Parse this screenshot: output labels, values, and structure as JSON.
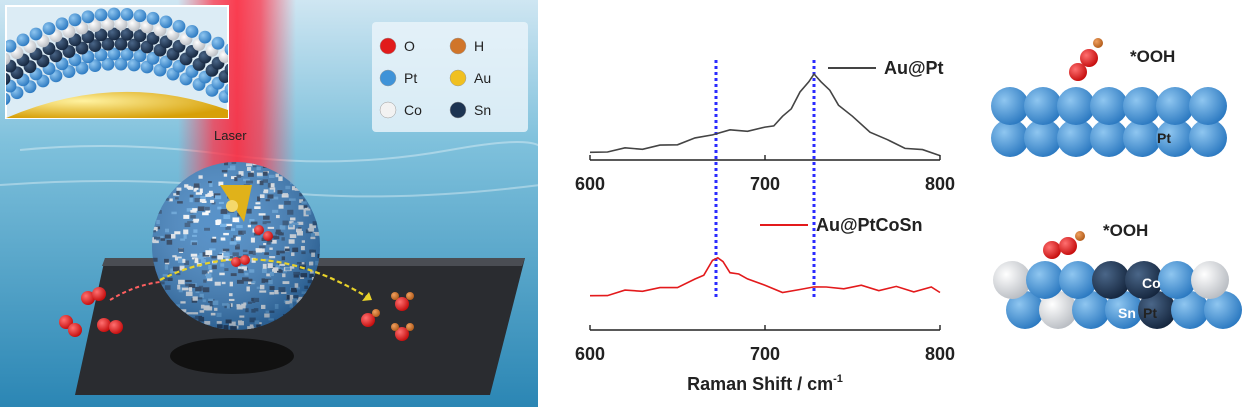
{
  "illustration": {
    "laser_label": "Laser",
    "legend": [
      {
        "symbol": "O",
        "color": "#e11b1b"
      },
      {
        "symbol": "H",
        "color": "#d0752a"
      },
      {
        "symbol": "Pt",
        "color": "#3f93d8"
      },
      {
        "symbol": "Au",
        "color": "#f0c020"
      },
      {
        "symbol": "Co",
        "color": "#f2f2f2"
      },
      {
        "symbol": "Sn",
        "color": "#1d3452"
      }
    ]
  },
  "chart_data": {
    "type": "line",
    "xlabel_main": "Raman Shift / cm",
    "xlabel_sup": "-1",
    "xlim": [
      600,
      800
    ],
    "tick_labels": [
      "600",
      "700",
      "800"
    ],
    "reference_lines": [
      672,
      728
    ],
    "series": [
      {
        "name": "Au@Pt",
        "color": "#444444",
        "x": [
          600,
          610,
          620,
          630,
          640,
          650,
          660,
          670,
          680,
          690,
          700,
          705,
          710,
          715,
          720,
          725,
          728,
          732,
          737,
          742,
          750,
          760,
          770,
          780,
          790,
          800
        ],
        "y": [
          0.05,
          0.08,
          0.1,
          0.11,
          0.13,
          0.16,
          0.21,
          0.27,
          0.3,
          0.31,
          0.33,
          0.37,
          0.45,
          0.56,
          0.72,
          0.86,
          0.92,
          0.86,
          0.74,
          0.6,
          0.45,
          0.3,
          0.19,
          0.12,
          0.08,
          0.04
        ]
      },
      {
        "name": "Au@PtCoSn",
        "color": "#e31a1c",
        "x": [
          600,
          610,
          620,
          630,
          640,
          650,
          660,
          665,
          670,
          673,
          676,
          680,
          685,
          690,
          700,
          710,
          720,
          728,
          735,
          745,
          755,
          765,
          775,
          785,
          795,
          800
        ],
        "y": [
          0.05,
          0.09,
          0.14,
          0.16,
          0.18,
          0.22,
          0.32,
          0.42,
          0.62,
          0.7,
          0.6,
          0.46,
          0.4,
          0.36,
          0.22,
          0.14,
          0.15,
          0.23,
          0.19,
          0.2,
          0.22,
          0.17,
          0.2,
          0.15,
          0.19,
          0.14
        ]
      }
    ]
  },
  "models": {
    "top": {
      "adsorbate": "*OOH",
      "atom_label": "Pt"
    },
    "bottom": {
      "adsorbate": "*OOH",
      "labels": [
        "Co",
        "Sn",
        "Pt"
      ]
    }
  }
}
